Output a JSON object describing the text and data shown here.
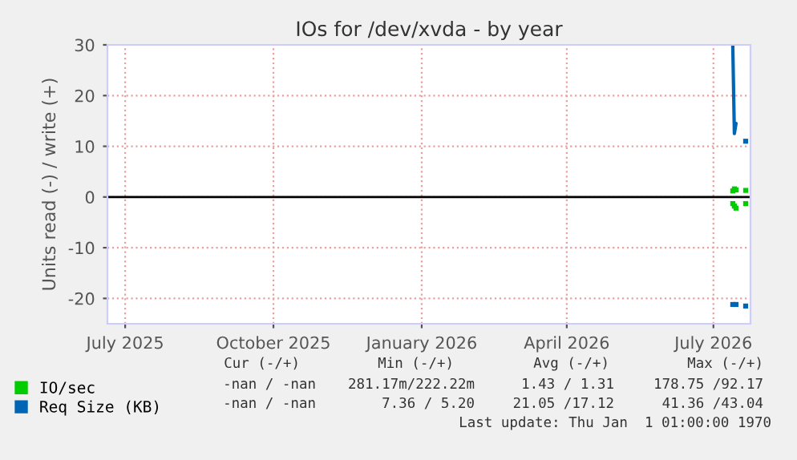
{
  "chart_data": {
    "type": "line",
    "title": "IOs for /dev/xvda - by year",
    "ylabel": "Units read (-) / write (+)",
    "xlim": [
      "2025-06-20",
      "2026-07-24"
    ],
    "xticks": [
      {
        "value": "2025-07-01",
        "label": "July 2025"
      },
      {
        "value": "2025-10-01",
        "label": "October 2025"
      },
      {
        "value": "2026-01-01",
        "label": "January 2026"
      },
      {
        "value": "2026-04-01",
        "label": "April 2026"
      },
      {
        "value": "2026-07-01",
        "label": "July 2026"
      }
    ],
    "ylim": [
      -25,
      30
    ],
    "yticks": [
      -20,
      -10,
      0,
      10,
      20,
      30
    ],
    "grid": true,
    "legend": "bottom left",
    "ref_lines": [
      {
        "axis": "y",
        "value": 0,
        "color": "#000000"
      }
    ],
    "x": [
      "2026-07-13",
      "2026-07-14",
      "2026-07-15",
      "2026-07-18",
      "2026-07-21"
    ],
    "series": [
      {
        "name": "IO/sec",
        "type": "scatter",
        "marker": "square",
        "color": "#00cc00",
        "values": [
          1.2,
          1.6,
          1.4,
          null,
          1.3
        ]
      },
      {
        "type": "scatter",
        "marker": "square",
        "color": "#00cc00",
        "values": [
          -1.3,
          -1.8,
          -2.2,
          null,
          -1.3
        ]
      },
      {
        "name": "Req Size (KB)",
        "color": "#0066b3",
        "values": [
          30,
          12.5,
          14.5,
          null,
          null
        ]
      },
      {
        "type": "scatter",
        "marker": "square",
        "color": "#0066b3",
        "values": [
          null,
          null,
          null,
          null,
          11
        ]
      },
      {
        "type": "scatter",
        "marker": "square",
        "color": "#0066b3",
        "values": [
          -21.2,
          null,
          -21.2,
          null,
          -21.5
        ]
      }
    ],
    "annotations": [
      "Cur (-/+)",
      "Min (-/+)",
      "Avg (-/+)",
      "Max (-/+)",
      "-nan / -nan",
      "281.17m/222.22m",
      "1.43 / 1.31",
      "178.75 /92.17",
      "-nan / -nan",
      "7.36 / 5.20",
      "21.05 /17.12",
      "41.36 /43.04",
      "Last update: Thu Jan  1 01:00:00 1970"
    ]
  }
}
